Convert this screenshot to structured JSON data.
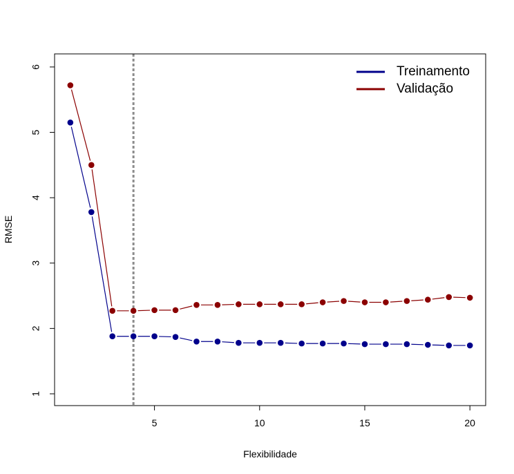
{
  "chart_data": {
    "type": "line",
    "title": "",
    "xlabel": "Flexibilidade",
    "ylabel": "RMSE",
    "xlim": [
      0.25,
      20.75
    ],
    "ylim": [
      0.82,
      6.2
    ],
    "x_ticks": [
      5,
      10,
      15,
      20
    ],
    "y_ticks": [
      1,
      2,
      3,
      4,
      5,
      6
    ],
    "x_tick_labels": [
      "5",
      "10",
      "15",
      "20"
    ],
    "y_tick_labels": [
      "1",
      "2",
      "3",
      "4",
      "5",
      "6"
    ],
    "vline": {
      "x": 4,
      "style": "dotted",
      "color": "#8c8c8c"
    },
    "legend_position": "top-right",
    "grid": false,
    "x": [
      1,
      2,
      3,
      4,
      5,
      6,
      7,
      8,
      9,
      10,
      11,
      12,
      13,
      14,
      15,
      16,
      17,
      18,
      19,
      20
    ],
    "series": [
      {
        "name": "Treinamento",
        "color": "#00008b",
        "values": [
          5.15,
          3.78,
          1.88,
          1.88,
          1.88,
          1.87,
          1.8,
          1.8,
          1.78,
          1.78,
          1.78,
          1.77,
          1.77,
          1.77,
          1.76,
          1.76,
          1.76,
          1.75,
          1.74,
          1.74
        ]
      },
      {
        "name": "Validação",
        "color": "#8b0000",
        "values": [
          5.72,
          4.5,
          2.27,
          2.27,
          2.28,
          2.28,
          2.36,
          2.36,
          2.37,
          2.37,
          2.37,
          2.37,
          2.4,
          2.42,
          2.4,
          2.4,
          2.42,
          2.44,
          2.48,
          2.47
        ]
      }
    ]
  }
}
